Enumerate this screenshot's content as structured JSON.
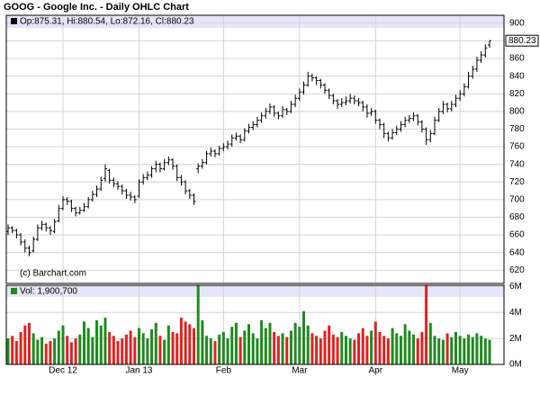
{
  "chart_data": {
    "type": "ohlc",
    "title": "GOOG - Google Inc. - Daily OHLC Chart",
    "price_legend": "Op:875.31, Hi:880.54, Lo:872.16, Cl:880.23",
    "volume_legend": "Vol: 1,900,700",
    "credit": "(c) Barchart.com",
    "categories": [
      null,
      null,
      null,
      null,
      null,
      null,
      null,
      null,
      null,
      null,
      null,
      null,
      null,
      "Dec 12",
      null,
      null,
      null,
      null,
      null,
      null,
      null,
      null,
      null,
      null,
      null,
      null,
      null,
      null,
      null,
      null,
      null,
      "Jan 13",
      null,
      null,
      null,
      null,
      null,
      null,
      null,
      null,
      null,
      null,
      null,
      null,
      null,
      null,
      null,
      null,
      null,
      null,
      null,
      "Feb",
      null,
      null,
      null,
      null,
      null,
      null,
      null,
      null,
      null,
      null,
      null,
      null,
      null,
      null,
      null,
      null,
      null,
      "Mar",
      null,
      null,
      null,
      null,
      null,
      null,
      null,
      null,
      null,
      null,
      null,
      null,
      null,
      null,
      null,
      null,
      null,
      "Apr",
      null,
      null,
      null,
      null,
      null,
      null,
      null,
      null,
      null,
      null,
      null,
      null,
      null,
      null,
      null,
      null,
      null,
      null,
      null,
      "May",
      null,
      null,
      null,
      null,
      null,
      null,
      null
    ],
    "ohlc": [
      [
        664,
        672,
        660,
        668
      ],
      [
        668,
        670,
        662,
        665
      ],
      [
        665,
        667,
        656,
        660
      ],
      [
        660,
        662,
        648,
        652
      ],
      [
        652,
        655,
        640,
        645
      ],
      [
        645,
        648,
        636,
        640
      ],
      [
        642,
        658,
        640,
        655
      ],
      [
        655,
        672,
        653,
        668
      ],
      [
        668,
        676,
        665,
        672
      ],
      [
        672,
        674,
        664,
        668
      ],
      [
        668,
        670,
        660,
        665
      ],
      [
        664,
        678,
        662,
        675
      ],
      [
        676,
        694,
        674,
        690
      ],
      [
        690,
        704,
        688,
        700
      ],
      [
        700,
        703,
        694,
        698
      ],
      [
        698,
        700,
        686,
        690
      ],
      [
        690,
        692,
        681,
        685
      ],
      [
        685,
        692,
        683,
        688
      ],
      [
        688,
        696,
        686,
        692
      ],
      [
        692,
        703,
        690,
        700
      ],
      [
        700,
        710,
        698,
        706
      ],
      [
        706,
        716,
        703,
        712
      ],
      [
        712,
        726,
        710,
        722
      ],
      [
        724,
        740,
        720,
        735
      ],
      [
        733,
        735,
        718,
        722
      ],
      [
        722,
        725,
        714,
        718
      ],
      [
        718,
        721,
        711,
        715
      ],
      [
        715,
        717,
        706,
        710
      ],
      [
        710,
        712,
        701,
        705
      ],
      [
        705,
        709,
        699,
        703
      ],
      [
        703,
        705,
        696,
        700
      ],
      [
        704,
        723,
        702,
        720
      ],
      [
        720,
        729,
        717,
        725
      ],
      [
        725,
        732,
        722,
        728
      ],
      [
        728,
        738,
        725,
        735
      ],
      [
        735,
        744,
        731,
        740
      ],
      [
        740,
        742,
        731,
        735
      ],
      [
        735,
        746,
        733,
        742
      ],
      [
        742,
        749,
        739,
        745
      ],
      [
        745,
        747,
        734,
        738
      ],
      [
        738,
        740,
        721,
        725
      ],
      [
        725,
        728,
        716,
        720
      ],
      [
        720,
        722,
        706,
        710
      ],
      [
        710,
        712,
        701,
        705
      ],
      [
        705,
        707,
        694,
        698
      ],
      [
        735,
        741,
        730,
        738
      ],
      [
        738,
        746,
        735,
        742
      ],
      [
        742,
        755,
        740,
        752
      ],
      [
        752,
        759,
        749,
        755
      ],
      [
        755,
        757,
        748,
        752
      ],
      [
        752,
        761,
        750,
        758
      ],
      [
        758,
        764,
        755,
        760
      ],
      [
        760,
        767,
        757,
        763
      ],
      [
        763,
        774,
        760,
        770
      ],
      [
        770,
        776,
        767,
        772
      ],
      [
        772,
        774,
        764,
        768
      ],
      [
        768,
        781,
        766,
        778
      ],
      [
        778,
        786,
        775,
        782
      ],
      [
        782,
        789,
        779,
        785
      ],
      [
        785,
        794,
        782,
        790
      ],
      [
        790,
        799,
        787,
        795
      ],
      [
        795,
        804,
        792,
        800
      ],
      [
        800,
        809,
        797,
        805
      ],
      [
        805,
        807,
        794,
        798
      ],
      [
        798,
        800,
        791,
        795
      ],
      [
        795,
        806,
        793,
        802
      ],
      [
        802,
        804,
        796,
        800
      ],
      [
        800,
        812,
        798,
        808
      ],
      [
        808,
        819,
        805,
        815
      ],
      [
        815,
        826,
        812,
        822
      ],
      [
        822,
        834,
        819,
        830
      ],
      [
        830,
        845,
        828,
        840
      ],
      [
        840,
        843,
        834,
        838
      ],
      [
        838,
        840,
        830,
        835
      ],
      [
        835,
        837,
        826,
        830
      ],
      [
        830,
        832,
        820,
        824
      ],
      [
        824,
        826,
        814,
        818
      ],
      [
        818,
        820,
        808,
        812
      ],
      [
        812,
        814,
        803,
        808
      ],
      [
        808,
        815,
        805,
        810
      ],
      [
        810,
        817,
        807,
        812
      ],
      [
        812,
        820,
        809,
        815
      ],
      [
        815,
        818,
        808,
        812
      ],
      [
        812,
        815,
        806,
        810
      ],
      [
        810,
        812,
        800,
        805
      ],
      [
        805,
        808,
        793,
        798
      ],
      [
        798,
        804,
        795,
        800
      ],
      [
        800,
        802,
        786,
        790
      ],
      [
        790,
        792,
        780,
        785
      ],
      [
        785,
        787,
        770,
        775
      ],
      [
        775,
        777,
        766,
        770
      ],
      [
        770,
        780,
        768,
        776
      ],
      [
        776,
        784,
        773,
        780
      ],
      [
        780,
        789,
        777,
        785
      ],
      [
        785,
        794,
        782,
        790
      ],
      [
        790,
        796,
        787,
        792
      ],
      [
        792,
        799,
        789,
        795
      ],
      [
        795,
        797,
        784,
        788
      ],
      [
        788,
        790,
        776,
        780
      ],
      [
        780,
        782,
        762,
        768
      ],
      [
        768,
        779,
        765,
        775
      ],
      [
        775,
        794,
        773,
        790
      ],
      [
        790,
        804,
        788,
        800
      ],
      [
        800,
        812,
        797,
        808
      ],
      [
        808,
        810,
        799,
        803
      ],
      [
        803,
        812,
        800,
        808
      ],
      [
        808,
        819,
        805,
        815
      ],
      [
        815,
        824,
        812,
        820
      ],
      [
        820,
        832,
        817,
        828
      ],
      [
        828,
        845,
        826,
        840
      ],
      [
        840,
        852,
        837,
        848
      ],
      [
        848,
        862,
        845,
        858
      ],
      [
        858,
        868,
        855,
        864
      ],
      [
        864,
        876,
        861,
        872
      ],
      [
        875.31,
        880.54,
        872.16,
        880.23
      ]
    ],
    "volume": [
      2.0,
      2.2,
      1.8,
      2.5,
      3.0,
      3.2,
      2.4,
      1.9,
      2.1,
      1.6,
      1.8,
      2.0,
      2.6,
      3.0,
      2.2,
      1.7,
      2.0,
      2.3,
      3.3,
      2.8,
      2.1,
      3.4,
      3.0,
      3.6,
      2.5,
      2.2,
      1.8,
      2.0,
      2.3,
      2.6,
      2.1,
      2.8,
      2.4,
      2.0,
      2.7,
      3.2,
      2.2,
      1.9,
      3.0,
      2.5,
      2.4,
      3.6,
      3.3,
      3.1,
      2.8,
      6.6,
      3.4,
      2.2,
      2.0,
      1.8,
      2.3,
      2.5,
      2.0,
      2.9,
      3.2,
      2.1,
      2.6,
      3.1,
      2.4,
      2.0,
      3.4,
      2.8,
      3.2,
      2.5,
      2.2,
      2.4,
      2.1,
      2.6,
      3.2,
      2.9,
      4.1,
      3.0,
      2.4,
      2.2,
      2.0,
      2.6,
      3.0,
      2.3,
      2.1,
      2.5,
      2.2,
      2.0,
      1.9,
      2.4,
      2.8,
      2.2,
      2.6,
      3.3,
      2.5,
      2.2,
      2.0,
      2.8,
      2.4,
      2.2,
      3.1,
      2.6,
      2.3,
      2.0,
      2.5,
      6.4,
      3.2,
      2.2,
      2.0,
      1.9,
      2.4,
      2.1,
      2.5,
      2.2,
      2.0,
      2.3,
      2.1,
      2.4,
      2.2,
      2.0,
      1.9007
    ],
    "ylim": [
      605,
      909
    ],
    "yticks": [
      620,
      640,
      660,
      680,
      700,
      720,
      740,
      760,
      780,
      800,
      820,
      840,
      860,
      880,
      900
    ],
    "y2lim": [
      0,
      6.1
    ],
    "y2ticks": [
      {
        "value": 0,
        "label": "0M"
      },
      {
        "value": 2,
        "label": "2M"
      },
      {
        "value": 4,
        "label": "4M"
      },
      {
        "value": 6,
        "label": "6M"
      }
    ],
    "grid": true,
    "bar_color": "#000000",
    "up_color": "#1f8a1f",
    "down_color": "#e02222",
    "header_color": "#e6e6fa"
  }
}
